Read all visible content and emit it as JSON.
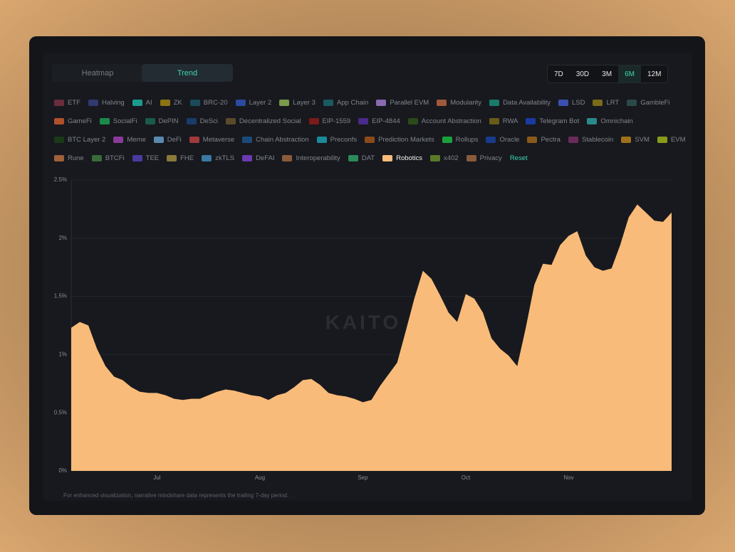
{
  "tabs": [
    {
      "label": "Heatmap"
    },
    {
      "label": "Trend",
      "active": true
    }
  ],
  "ranges": [
    {
      "label": "7D"
    },
    {
      "label": "30D"
    },
    {
      "label": "3M"
    },
    {
      "label": "6M",
      "active": true
    },
    {
      "label": "12M"
    }
  ],
  "narratives": [
    {
      "name": "ETF",
      "color": "#6b2d3d"
    },
    {
      "name": "Halving",
      "color": "#2f3a6e"
    },
    {
      "name": "AI",
      "color": "#1a9b8c"
    },
    {
      "name": "ZK",
      "color": "#8a7414"
    },
    {
      "name": "BRC-20",
      "color": "#1c4a5a"
    },
    {
      "name": "Layer 2",
      "color": "#2b4aa0"
    },
    {
      "name": "Layer 3",
      "color": "#7a9a4a"
    },
    {
      "name": "App Chain",
      "color": "#1a5a60"
    },
    {
      "name": "Parallel EVM",
      "color": "#8a6ab0"
    },
    {
      "name": "Modularity",
      "color": "#a0583a"
    },
    {
      "name": "Data Availability",
      "color": "#1a7a6a"
    },
    {
      "name": "LSD",
      "color": "#3a50b0"
    },
    {
      "name": "LRT",
      "color": "#7a6a1a"
    },
    {
      "name": "GambleFi",
      "color": "#2a4a4a"
    },
    {
      "name": "GameFi",
      "color": "#b0502a"
    },
    {
      "name": "SocialFi",
      "color": "#1a8a4a"
    },
    {
      "name": "DePIN",
      "color": "#1a5a4a"
    },
    {
      "name": "DeSci",
      "color": "#1a3a6a"
    },
    {
      "name": "Decentralized Social",
      "color": "#5a4a2a"
    },
    {
      "name": "EIP-1559",
      "color": "#7a1a1a"
    },
    {
      "name": "EIP-4844",
      "color": "#4a2a8a"
    },
    {
      "name": "Account Abstraction",
      "color": "#2a4a1a"
    },
    {
      "name": "RWA",
      "color": "#6a5a1a"
    },
    {
      "name": "Telegram Bot",
      "color": "#1a3aa0"
    },
    {
      "name": "Omnichain",
      "color": "#2a8a8a"
    },
    {
      "name": "BTC Layer 2",
      "color": "#1a3a1a"
    },
    {
      "name": "Meme",
      "color": "#8a3a9a"
    },
    {
      "name": "DeFi",
      "color": "#5a8ab0"
    },
    {
      "name": "Metaverse",
      "color": "#a03a3a"
    },
    {
      "name": "Chain Abstraction",
      "color": "#1a4a7a"
    },
    {
      "name": "Preconfs",
      "color": "#1a8a9a"
    },
    {
      "name": "Prediction Markets",
      "color": "#8a4a1a"
    },
    {
      "name": "Rollups",
      "color": "#1aa03a"
    },
    {
      "name": "Oracle",
      "color": "#1a3a8a"
    },
    {
      "name": "Pectra",
      "color": "#8a5a1a"
    },
    {
      "name": "Stablecoin",
      "color": "#6a2a5a"
    },
    {
      "name": "SVM",
      "color": "#a0701a"
    },
    {
      "name": "EVM",
      "color": "#8a9a1a"
    },
    {
      "name": "Rune",
      "color": "#a0603a"
    },
    {
      "name": "BTCFi",
      "color": "#3a6a3a"
    },
    {
      "name": "TEE",
      "color": "#4a3aa0"
    },
    {
      "name": "FHE",
      "color": "#8a7a3a"
    },
    {
      "name": "zkTLS",
      "color": "#3a7aa0"
    },
    {
      "name": "DeFAI",
      "color": "#6a3ab0"
    },
    {
      "name": "Interoperability",
      "color": "#8a5a3a"
    },
    {
      "name": "DAT",
      "color": "#2a8a5a"
    },
    {
      "name": "Robotics",
      "color": "#f9bb79",
      "active": true
    },
    {
      "name": "x402",
      "color": "#5a7a2a"
    },
    {
      "name": "Privacy",
      "color": "#8a5a3a"
    }
  ],
  "reset": "Reset",
  "watermark": "KAITO",
  "footnote": "For enhanced visualization, narrative mindshare data represents the trailing 7-day period.",
  "chart_data": {
    "type": "area",
    "categories": [
      null,
      null,
      null,
      null,
      null,
      null,
      null,
      null,
      null,
      null,
      "Jul",
      null,
      null,
      null,
      null,
      null,
      null,
      null,
      null,
      null,
      null,
      null,
      "Aug",
      null,
      null,
      null,
      null,
      null,
      null,
      null,
      null,
      null,
      null,
      null,
      "Sep",
      null,
      null,
      null,
      null,
      null,
      null,
      null,
      null,
      null,
      null,
      null,
      "Oct",
      null,
      null,
      null,
      null,
      null,
      null,
      null,
      null,
      null,
      null,
      null,
      "Nov",
      null,
      null,
      null,
      null,
      null,
      null,
      null,
      null,
      null,
      null,
      null,
      null
    ],
    "series": [
      {
        "color": "#f9bb79",
        "values": [
          1.23,
          1.28,
          1.25,
          1.05,
          0.9,
          0.81,
          0.78,
          0.72,
          0.68,
          0.67,
          0.67,
          0.65,
          0.62,
          0.61,
          0.62,
          0.62,
          0.65,
          0.68,
          0.7,
          0.69,
          0.67,
          0.65,
          0.64,
          0.61,
          0.65,
          0.67,
          0.72,
          0.78,
          0.79,
          0.74,
          0.67,
          0.65,
          0.64,
          0.62,
          0.59,
          0.61,
          0.73,
          0.83,
          0.93,
          1.2,
          1.48,
          1.72,
          1.65,
          1.51,
          1.36,
          1.28,
          1.52,
          1.48,
          1.36,
          1.14,
          1.05,
          0.99,
          0.9,
          1.23,
          1.6,
          1.78,
          1.77,
          1.94,
          2.02,
          2.06,
          1.85,
          1.75,
          1.72,
          1.74,
          1.94,
          2.18,
          2.29,
          2.22,
          2.15,
          2.14,
          2.22
        ]
      }
    ],
    "ylim": [
      0,
      2.5
    ],
    "yticks": [
      {
        "value": 0,
        "label": "0%"
      },
      {
        "value": 0.5,
        "label": "0.5%"
      },
      {
        "value": 1,
        "label": "1%"
      },
      {
        "value": 1.5,
        "label": "1.5%"
      },
      {
        "value": 2,
        "label": "2%"
      },
      {
        "value": 2.5,
        "label": "2.5%"
      }
    ],
    "grid": true
  }
}
